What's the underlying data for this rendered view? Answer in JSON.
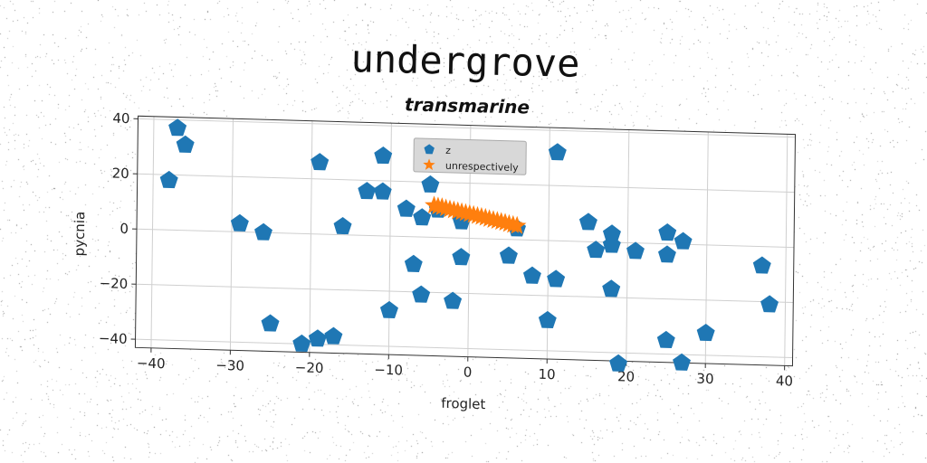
{
  "colors": {
    "series_z": "#1f77b4",
    "series_unrespectively": "#ff7f0e",
    "grid": "#cfcfcf",
    "axes": "#333333",
    "legend_bg": "#d8d8d8"
  },
  "chart_data": {
    "type": "scatter",
    "title": "undergrove",
    "subtitle": "transmarine",
    "xlabel": "froglet",
    "ylabel": "pycnia",
    "xlim": [
      -42,
      41
    ],
    "ylim": [
      -43,
      41
    ],
    "xticks": [
      -40,
      -30,
      -20,
      -10,
      0,
      10,
      20,
      30,
      40
    ],
    "yticks": [
      -40,
      -20,
      0,
      20,
      40
    ],
    "grid": true,
    "legend_position": "top-center",
    "series": [
      {
        "name": "z",
        "marker": "pentagon",
        "color": "#1f77b4",
        "points": [
          [
            -37,
            37
          ],
          [
            -36,
            31
          ],
          [
            -38,
            18
          ],
          [
            -19,
            26
          ],
          [
            -11,
            29
          ],
          [
            11,
            32
          ],
          [
            -13,
            16
          ],
          [
            -11,
            16
          ],
          [
            -5,
            19
          ],
          [
            -8,
            10
          ],
          [
            -6,
            7
          ],
          [
            -4,
            10
          ],
          [
            -29,
            3
          ],
          [
            -26,
            0
          ],
          [
            -16,
            3
          ],
          [
            -1,
            6
          ],
          [
            6,
            4
          ],
          [
            15,
            7
          ],
          [
            18,
            3
          ],
          [
            18,
            -1
          ],
          [
            16,
            -3
          ],
          [
            21,
            -3
          ],
          [
            25,
            4
          ],
          [
            27,
            1
          ],
          [
            25,
            -4
          ],
          [
            37,
            -7
          ],
          [
            38,
            -21
          ],
          [
            -1,
            -7
          ],
          [
            5,
            -6
          ],
          [
            -7,
            -10
          ],
          [
            8,
            -13
          ],
          [
            11,
            -14
          ],
          [
            18,
            -17
          ],
          [
            -6,
            -21
          ],
          [
            -2,
            -23
          ],
          [
            -10,
            -27
          ],
          [
            10,
            -29
          ],
          [
            -25,
            -33
          ],
          [
            -21,
            -40
          ],
          [
            -19,
            -38
          ],
          [
            -17,
            -37
          ],
          [
            19,
            -44
          ],
          [
            25,
            -35
          ],
          [
            27,
            -43
          ],
          [
            30,
            -32
          ]
        ]
      },
      {
        "name": "unrespectively",
        "marker": "star",
        "color": "#ff7f0e",
        "points": [
          [
            -4.5,
            11.5
          ],
          [
            -4.0,
            11.2
          ],
          [
            -3.5,
            11.0
          ],
          [
            -3.0,
            10.6
          ],
          [
            -2.5,
            10.3
          ],
          [
            -2.0,
            10.0
          ],
          [
            -1.5,
            9.7
          ],
          [
            -1.0,
            9.4
          ],
          [
            -0.5,
            9.1
          ],
          [
            0.0,
            8.8
          ],
          [
            0.5,
            8.5
          ],
          [
            1.0,
            8.2
          ],
          [
            1.5,
            7.9
          ],
          [
            2.0,
            7.6
          ],
          [
            2.5,
            7.2
          ],
          [
            3.0,
            6.9
          ],
          [
            3.5,
            6.6
          ],
          [
            4.0,
            6.3
          ],
          [
            4.5,
            6.0
          ],
          [
            5.0,
            5.6
          ],
          [
            5.5,
            5.3
          ],
          [
            6.0,
            5.0
          ]
        ]
      }
    ]
  }
}
